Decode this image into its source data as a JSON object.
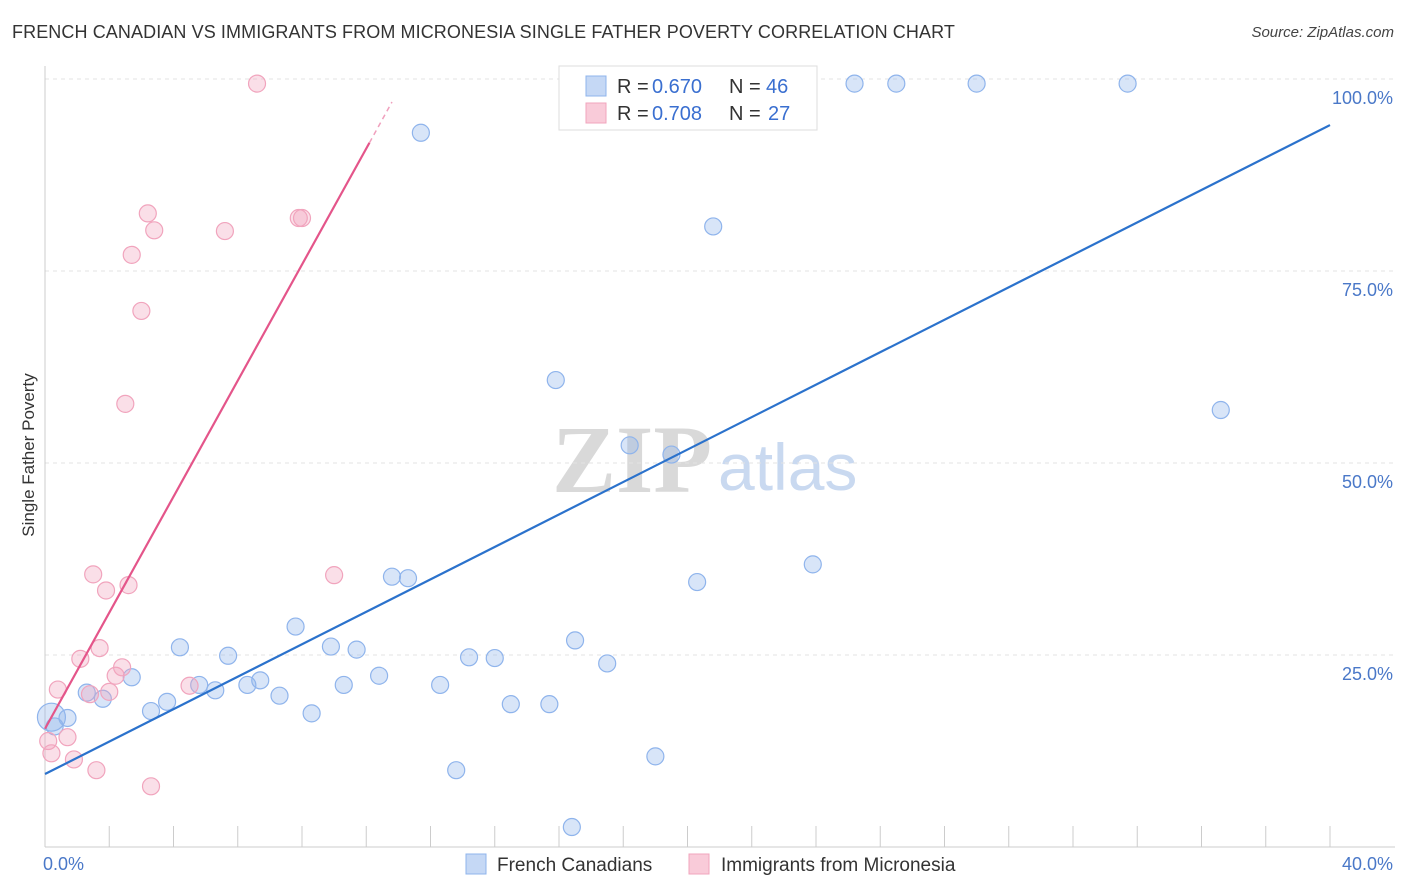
{
  "header": {
    "title": "FRENCH CANADIAN VS IMMIGRANTS FROM MICRONESIA SINGLE FATHER POVERTY CORRELATION CHART",
    "source": "Source: ZipAtlas.com"
  },
  "watermark": {
    "zip": "ZIP",
    "atlas": "atlas"
  },
  "chart_data": {
    "type": "scatter",
    "ylabel": "Single Father Poverty",
    "xlim": [
      0,
      40
    ],
    "ylim": [
      0,
      100
    ],
    "x_tick_labels": [
      {
        "value": 0,
        "label": "0.0%"
      },
      {
        "value": 40,
        "label": "40.0%"
      }
    ],
    "y_tick_labels": [
      {
        "value": 25,
        "label": "25.0%"
      },
      {
        "value": 50,
        "label": "50.0%"
      },
      {
        "value": 75,
        "label": "75.0%"
      },
      {
        "value": 100,
        "label": "100.0%"
      }
    ],
    "grid": true,
    "legend_top": [
      {
        "r_label": "R = ",
        "r_value": "0.670",
        "n_label": "N = ",
        "n_value": "46",
        "color": "#8fb4ec"
      },
      {
        "r_label": "R = ",
        "r_value": "0.708",
        "n_label": "N = ",
        "n_value": "27",
        "color": "#f1a4bd"
      }
    ],
    "series": [
      {
        "name": "French Canadians",
        "color": "#8fb4ec",
        "line_color": "#2b72cc",
        "trend": {
          "x": [
            0,
            40
          ],
          "y": [
            9.5,
            94
          ]
        },
        "points": [
          [
            0.3,
            15.7
          ],
          [
            0.7,
            16.8
          ],
          [
            1.3,
            20.1
          ],
          [
            1.8,
            19.3
          ],
          [
            2.7,
            22.1
          ],
          [
            3.3,
            17.7
          ],
          [
            3.8,
            18.9
          ],
          [
            4.2,
            26.0
          ],
          [
            4.8,
            21.1
          ],
          [
            5.3,
            20.4
          ],
          [
            5.7,
            24.9
          ],
          [
            6.3,
            21.1
          ],
          [
            6.7,
            21.7
          ],
          [
            7.3,
            19.7
          ],
          [
            7.8,
            28.7
          ],
          [
            8.3,
            17.4
          ],
          [
            8.9,
            26.1
          ],
          [
            9.3,
            21.1
          ],
          [
            9.7,
            25.7
          ],
          [
            10.4,
            22.3
          ],
          [
            10.8,
            35.2
          ],
          [
            11.3,
            35.0
          ],
          [
            11.7,
            93.0
          ],
          [
            12.3,
            21.1
          ],
          [
            12.8,
            10.0
          ],
          [
            13.2,
            24.7
          ],
          [
            14.0,
            24.6
          ],
          [
            14.5,
            18.6
          ],
          [
            15.7,
            18.6
          ],
          [
            15.9,
            60.8
          ],
          [
            16.4,
            2.6
          ],
          [
            16.5,
            26.9
          ],
          [
            17.5,
            23.9
          ],
          [
            18.2,
            52.3
          ],
          [
            19.0,
            11.8
          ],
          [
            19.5,
            51.1
          ],
          [
            20.3,
            34.5
          ],
          [
            20.8,
            80.8
          ],
          [
            22.0,
            99.4
          ],
          [
            23.9,
            36.8
          ],
          [
            25.2,
            99.4
          ],
          [
            26.5,
            99.4
          ],
          [
            29.0,
            99.4
          ],
          [
            33.7,
            99.4
          ],
          [
            36.6,
            56.9
          ],
          [
            0.2,
            16.9
          ]
        ]
      },
      {
        "name": "Immigrants from Micronesia",
        "color": "#f1a4bd",
        "line_color": "#e4558a",
        "trend": {
          "x": [
            0,
            10.1
          ],
          "y": [
            15.4,
            91.7
          ]
        },
        "trend_dashed": {
          "x": [
            10.1,
            10.8
          ],
          "y": [
            91.7,
            97.0
          ]
        },
        "points": [
          [
            0.1,
            13.8
          ],
          [
            0.2,
            12.2
          ],
          [
            0.4,
            20.5
          ],
          [
            0.7,
            14.3
          ],
          [
            0.9,
            11.4
          ],
          [
            1.1,
            24.5
          ],
          [
            1.4,
            19.9
          ],
          [
            1.5,
            35.5
          ],
          [
            1.6,
            10.0
          ],
          [
            1.7,
            25.9
          ],
          [
            1.9,
            33.4
          ],
          [
            2.0,
            20.2
          ],
          [
            2.2,
            22.3
          ],
          [
            2.4,
            23.4
          ],
          [
            2.5,
            57.7
          ],
          [
            2.6,
            34.1
          ],
          [
            2.7,
            77.1
          ],
          [
            3.0,
            69.8
          ],
          [
            3.2,
            82.5
          ],
          [
            3.4,
            80.3
          ],
          [
            4.5,
            21.0
          ],
          [
            5.6,
            80.2
          ],
          [
            6.6,
            99.4
          ],
          [
            7.9,
            81.9
          ],
          [
            8.0,
            81.9
          ],
          [
            9.0,
            35.4
          ],
          [
            3.3,
            7.9
          ]
        ]
      }
    ]
  }
}
